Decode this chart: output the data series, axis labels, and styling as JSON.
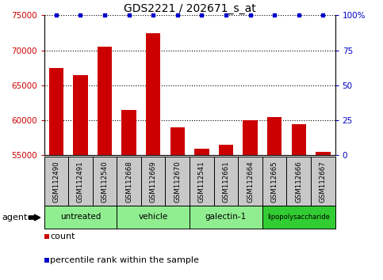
{
  "title": "GDS2221 / 202671_s_at",
  "samples": [
    "GSM112490",
    "GSM112491",
    "GSM112540",
    "GSM112668",
    "GSM112669",
    "GSM112670",
    "GSM112541",
    "GSM112661",
    "GSM112664",
    "GSM112665",
    "GSM112666",
    "GSM112667"
  ],
  "counts": [
    67500,
    66500,
    70500,
    61500,
    72500,
    59000,
    56000,
    56500,
    60000,
    60500,
    59500,
    55500
  ],
  "percentiles": [
    100,
    100,
    100,
    100,
    100,
    100,
    100,
    100,
    100,
    100,
    100,
    100
  ],
  "groups": [
    {
      "label": "untreated",
      "start": 0,
      "end": 3,
      "color": "#90EE90"
    },
    {
      "label": "vehicle",
      "start": 3,
      "end": 6,
      "color": "#90EE90"
    },
    {
      "label": "galectin-1",
      "start": 6,
      "end": 9,
      "color": "#90EE90"
    },
    {
      "label": "lipopolysaccharide",
      "start": 9,
      "end": 12,
      "color": "#32CD32"
    }
  ],
  "ylim_left": [
    55000,
    75000
  ],
  "yticks_left": [
    55000,
    60000,
    65000,
    70000,
    75000
  ],
  "ylim_right": [
    0,
    100
  ],
  "yticks_right": [
    0,
    25,
    50,
    75,
    100
  ],
  "bar_color": "#CC0000",
  "dot_color": "#0000CC",
  "bg_color": "#FFFFFF",
  "grid_color": "#000000",
  "left_tick_color": "#CC0000",
  "right_tick_color": "#0000CC",
  "agent_label": "agent",
  "legend_count_label": "count",
  "legend_pct_label": "percentile rank within the sample",
  "sample_bg": "#C8C8C8",
  "group_colors": [
    "#90EE90",
    "#90EE90",
    "#90EE90",
    "#32CD32"
  ]
}
